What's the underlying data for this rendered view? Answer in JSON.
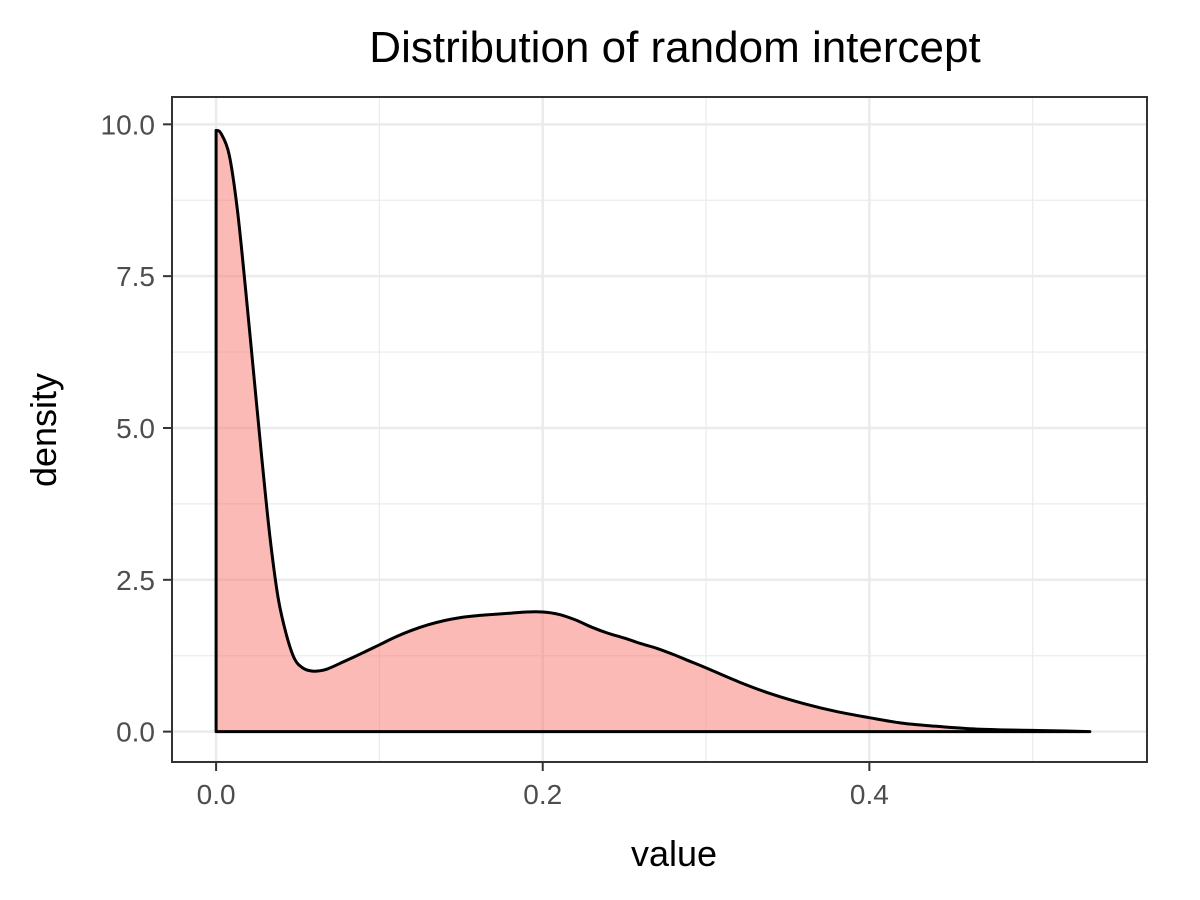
{
  "chart_data": {
    "type": "area",
    "title": "Distribution of random intercept",
    "xlabel": "value",
    "ylabel": "density",
    "xlim": [
      -0.027,
      0.57
    ],
    "ylim": [
      -0.5,
      10.45
    ],
    "x_ticks": [
      0.0,
      0.2,
      0.4
    ],
    "x_tick_labels": [
      "0.0",
      "0.2",
      "0.4"
    ],
    "y_ticks": [
      0.0,
      2.5,
      5.0,
      7.5,
      10.0
    ],
    "y_tick_labels": [
      "0.0",
      "2.5",
      "5.0",
      "7.5",
      "10.0"
    ],
    "grid": true,
    "legend": "none",
    "series": [
      {
        "x": [
          0.0,
          0.003,
          0.008,
          0.013,
          0.018,
          0.023,
          0.028,
          0.033,
          0.038,
          0.043,
          0.048,
          0.053,
          0.058,
          0.063,
          0.068,
          0.078,
          0.09,
          0.1,
          0.11,
          0.12,
          0.13,
          0.14,
          0.15,
          0.16,
          0.17,
          0.18,
          0.19,
          0.2,
          0.21,
          0.22,
          0.23,
          0.24,
          0.25,
          0.26,
          0.27,
          0.28,
          0.29,
          0.3,
          0.32,
          0.34,
          0.36,
          0.38,
          0.4,
          0.42,
          0.44,
          0.46,
          0.48,
          0.5,
          0.52,
          0.535
        ],
        "y": [
          9.9,
          9.85,
          9.5,
          8.6,
          7.3,
          5.9,
          4.5,
          3.2,
          2.2,
          1.6,
          1.2,
          1.05,
          1.0,
          1.0,
          1.03,
          1.15,
          1.3,
          1.43,
          1.56,
          1.67,
          1.76,
          1.83,
          1.88,
          1.91,
          1.93,
          1.95,
          1.97,
          1.97,
          1.93,
          1.84,
          1.72,
          1.62,
          1.54,
          1.45,
          1.37,
          1.27,
          1.16,
          1.05,
          0.82,
          0.62,
          0.46,
          0.33,
          0.23,
          0.14,
          0.09,
          0.05,
          0.03,
          0.02,
          0.01,
          0.0
        ]
      }
    ],
    "fill_color": "#f8766d",
    "fill_opacity": 0.5,
    "line_color": "#000000",
    "grid_color": "#ebebeb",
    "panel_border_color": "#333333",
    "tick_label_color": "#4d4d4d"
  }
}
